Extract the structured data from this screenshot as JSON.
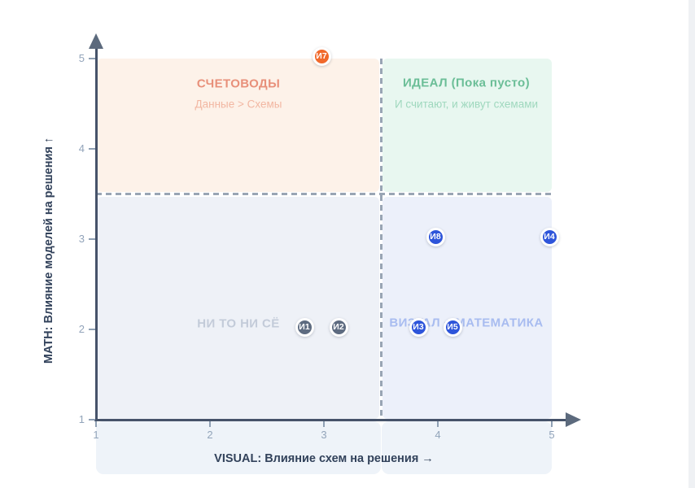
{
  "chart_data": {
    "type": "scatter",
    "title": "",
    "x_axis": {
      "label": "VISUAL: Влияние схем на решения →",
      "range": [
        1,
        5
      ],
      "ticks": [
        "1",
        "2",
        "3",
        "4",
        "5"
      ]
    },
    "y_axis": {
      "label": "MATH: Влияние моделей на решения ↑",
      "range": [
        1,
        5
      ],
      "ticks": [
        "1",
        "2",
        "3",
        "4",
        "5"
      ]
    },
    "grid": false,
    "legend": "none",
    "split": {
      "x": 3.5,
      "y": 3.5,
      "line_style": "dashed",
      "line_color": "#99a5b4"
    },
    "quadrants": [
      {
        "id": "top-left",
        "title": "СЧЕТОВОДЫ",
        "subtitle": "Данные > Схемы",
        "bg": "#fdf2e9",
        "title_color": "#e8907a",
        "subtitle_color": "#f2b7a2",
        "x": [
          1,
          3.5
        ],
        "y": [
          3.5,
          5
        ],
        "anchor": {
          "x": 2.25,
          "title_y": 4.72,
          "subtitle_y": 4.5
        }
      },
      {
        "id": "top-right",
        "title": "ИДЕАЛ (Пока пусто)",
        "subtitle": "И считают, и живут схемами",
        "bg": "#e8f7f0",
        "title_color": "#6bbe97",
        "subtitle_color": "#9fd8be",
        "x": [
          3.5,
          5
        ],
        "y": [
          3.5,
          5
        ],
        "anchor": {
          "x": 4.25,
          "title_y": 4.73,
          "subtitle_y": 4.5
        }
      },
      {
        "id": "bottom-left",
        "title": "НИ ТО НИ СЁ",
        "subtitle": "",
        "bg": "#eef1f7",
        "title_color": "#c3cbd9",
        "subtitle_color": "",
        "x": [
          1,
          3.5
        ],
        "y": [
          1,
          3.5
        ],
        "anchor": {
          "x": 2.25,
          "title_y": 2.06
        }
      },
      {
        "id": "bottom-right",
        "title": "ВИЗУАЛ + МАТЕМАТИКА",
        "subtitle": "",
        "bg": "#ecf0fa",
        "title_color": "#a8bcf0",
        "subtitle_color": "",
        "x": [
          3.5,
          5
        ],
        "y": [
          1,
          3.5
        ],
        "anchor": {
          "x": 4.25,
          "title_y": 2.07
        }
      }
    ],
    "points": [
      {
        "label": "И7",
        "x": 3.0,
        "y": 5.0,
        "color": "#f1692b",
        "group": "orange"
      },
      {
        "label": "И8",
        "x": 4.0,
        "y": 3.0,
        "color": "#2e55da",
        "group": "blue"
      },
      {
        "label": "И4",
        "x": 5.0,
        "y": 3.0,
        "color": "#2e55da",
        "group": "blue"
      },
      {
        "label": "И1",
        "x": 2.85,
        "y": 2.0,
        "color": "#5d6b80",
        "group": "gray"
      },
      {
        "label": "И2",
        "x": 3.15,
        "y": 2.0,
        "color": "#5d6b80",
        "group": "gray"
      },
      {
        "label": "И3",
        "x": 3.85,
        "y": 2.0,
        "color": "#2e55da",
        "group": "blue"
      },
      {
        "label": "И5",
        "x": 4.15,
        "y": 2.0,
        "color": "#2e55da",
        "group": "blue"
      }
    ],
    "point_text_color": "#ffffff",
    "axis_color": "#46536a",
    "tick_label_color": "#92a4ba",
    "axis_title_color": "#32425b"
  }
}
